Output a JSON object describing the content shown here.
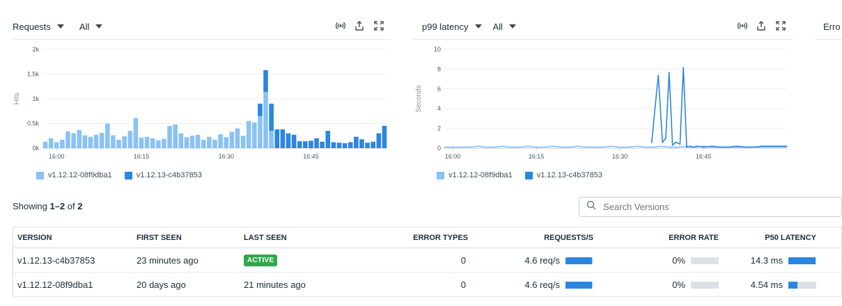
{
  "colors": {
    "series_a": "#8ac2f2",
    "series_b": "#2a86e0",
    "active_badge": "#2ea84a"
  },
  "panels": [
    {
      "metric": "Requests",
      "filter": "All",
      "icons": [
        "live-stream-icon",
        "export-icon",
        "expand-icon"
      ]
    },
    {
      "metric": "p99 latency",
      "filter": "All",
      "icons": [
        "live-stream-icon",
        "export-icon",
        "expand-icon"
      ]
    },
    {
      "metric": "Erro"
    }
  ],
  "chart_data": [
    {
      "type": "bar",
      "stacked": true,
      "ylabel": "Hits",
      "ylim": [
        0,
        2000
      ],
      "yticks": [
        0,
        500,
        1000,
        1500,
        2000
      ],
      "ytick_labels": [
        "0k",
        "0.5k",
        "1k",
        "1.5k",
        "2k"
      ],
      "xtick_labels": [
        {
          "index": 2,
          "label": "16:00"
        },
        {
          "index": 17,
          "label": "16:15"
        },
        {
          "index": 32,
          "label": "16:30"
        },
        {
          "index": 47,
          "label": "16:45"
        }
      ],
      "grid": true,
      "legend": "bottom-left",
      "series": [
        {
          "name": "v1.12.12-08f9dba1",
          "values": [
            130,
            200,
            120,
            170,
            340,
            300,
            370,
            260,
            230,
            270,
            310,
            500,
            260,
            170,
            240,
            350,
            610,
            210,
            230,
            200,
            160,
            190,
            450,
            480,
            300,
            220,
            250,
            270,
            170,
            230,
            170,
            280,
            220,
            330,
            400,
            250,
            550,
            520,
            650,
            1140,
            350,
            0,
            0,
            0,
            0,
            0,
            0,
            0,
            0,
            0,
            0,
            0,
            0,
            0,
            0,
            0,
            0,
            0,
            0,
            0,
            0
          ]
        },
        {
          "name": "v1.12.13-c4b37853",
          "values": [
            0,
            0,
            0,
            0,
            0,
            0,
            0,
            0,
            0,
            0,
            0,
            0,
            0,
            0,
            0,
            0,
            0,
            0,
            0,
            0,
            0,
            0,
            0,
            0,
            0,
            0,
            0,
            0,
            0,
            0,
            0,
            0,
            0,
            0,
            0,
            0,
            0,
            0,
            250,
            440,
            550,
            380,
            380,
            300,
            270,
            140,
            140,
            150,
            200,
            130,
            350,
            120,
            110,
            100,
            120,
            230,
            180,
            110,
            130,
            300,
            450
          ]
        }
      ]
    },
    {
      "type": "line",
      "ylabel": "Seconds",
      "ylim": [
        0,
        10
      ],
      "yticks": [
        0,
        2,
        4,
        6,
        8,
        10
      ],
      "ytick_labels": [
        "0",
        "2",
        "4",
        "6",
        "8",
        "10"
      ],
      "xtick_labels": [
        {
          "index": 1,
          "label": "16:00"
        },
        {
          "index": 11,
          "label": "16:15"
        },
        {
          "index": 21,
          "label": "16:30"
        },
        {
          "index": 31,
          "label": "16:45"
        }
      ],
      "grid": true,
      "legend": "bottom-left",
      "series": [
        {
          "name": "v1.12.12-08f9dba1",
          "x": [
            0,
            1,
            2,
            3,
            4,
            5,
            6,
            7,
            8,
            9,
            10,
            11,
            12,
            13,
            14,
            15,
            16,
            17,
            18,
            19,
            20,
            21,
            22,
            23,
            24,
            25,
            26,
            27,
            28,
            29,
            29.5,
            30,
            31,
            32,
            33,
            34,
            35,
            36,
            37,
            38,
            39,
            40,
            41
          ],
          "values": [
            0.1,
            0.1,
            0.1,
            0.1,
            0.2,
            0.1,
            0.1,
            0.2,
            0.1,
            0.1,
            0.2,
            0.1,
            0.1,
            0.2,
            0.1,
            0.1,
            0.2,
            0.1,
            0.1,
            0.1,
            0.2,
            0.1,
            0.1,
            0.2,
            0.1,
            0.1,
            0.2,
            0.1,
            0.1,
            0.2,
            0.1,
            0.1,
            0.2,
            0.1,
            0.1,
            0.1,
            0.1,
            0.1,
            0.1,
            0.1,
            0.1,
            0.1,
            0.1
          ]
        },
        {
          "name": "v1.12.13-c4b37853",
          "x": [
            24.8,
            25.6,
            26.1,
            26.5,
            26.9,
            27.3,
            27.7,
            28.2,
            28.6,
            29.0,
            29.4,
            29.8,
            30.2,
            31,
            32,
            33,
            34,
            35,
            36,
            37,
            38,
            39,
            40,
            41
          ],
          "values": [
            0.5,
            7.4,
            0.6,
            1.0,
            7.7,
            0.3,
            0.6,
            0.4,
            8.2,
            0.1,
            0.2,
            0.1,
            0.2,
            0.1,
            0.2,
            0.1,
            0.1,
            0.2,
            0.1,
            0.1,
            0.2,
            0.2,
            0.2,
            0.2
          ]
        }
      ]
    }
  ],
  "showing": {
    "prefix": "Showing ",
    "range": "1–2",
    "of": " of ",
    "total": "2"
  },
  "search": {
    "placeholder": "Search Versions",
    "value": ""
  },
  "table": {
    "headers": [
      "VERSION",
      "FIRST SEEN",
      "LAST SEEN",
      "ERROR TYPES",
      "REQUESTS/S",
      "ERROR RATE",
      "P50 LATENCY"
    ],
    "rows": [
      {
        "version": "v1.12.13-c4b37853",
        "first_seen": "23 minutes ago",
        "last_seen_badge": "ACTIVE",
        "last_seen": "",
        "error_types": "0",
        "requests": "4.6 req/s",
        "requests_fraction": 0.95,
        "error_rate": "0%",
        "error_rate_fraction": 0,
        "p50": "14.3 ms",
        "p50_fraction": 0.98
      },
      {
        "version": "v1.12.12-08f9dba1",
        "first_seen": "20 days ago",
        "last_seen_badge": "",
        "last_seen": "21 minutes ago",
        "error_types": "0",
        "requests": "4.6 req/s",
        "requests_fraction": 0.95,
        "error_rate": "0%",
        "error_rate_fraction": 0,
        "p50": "4.54 ms",
        "p50_fraction": 0.32
      }
    ]
  }
}
